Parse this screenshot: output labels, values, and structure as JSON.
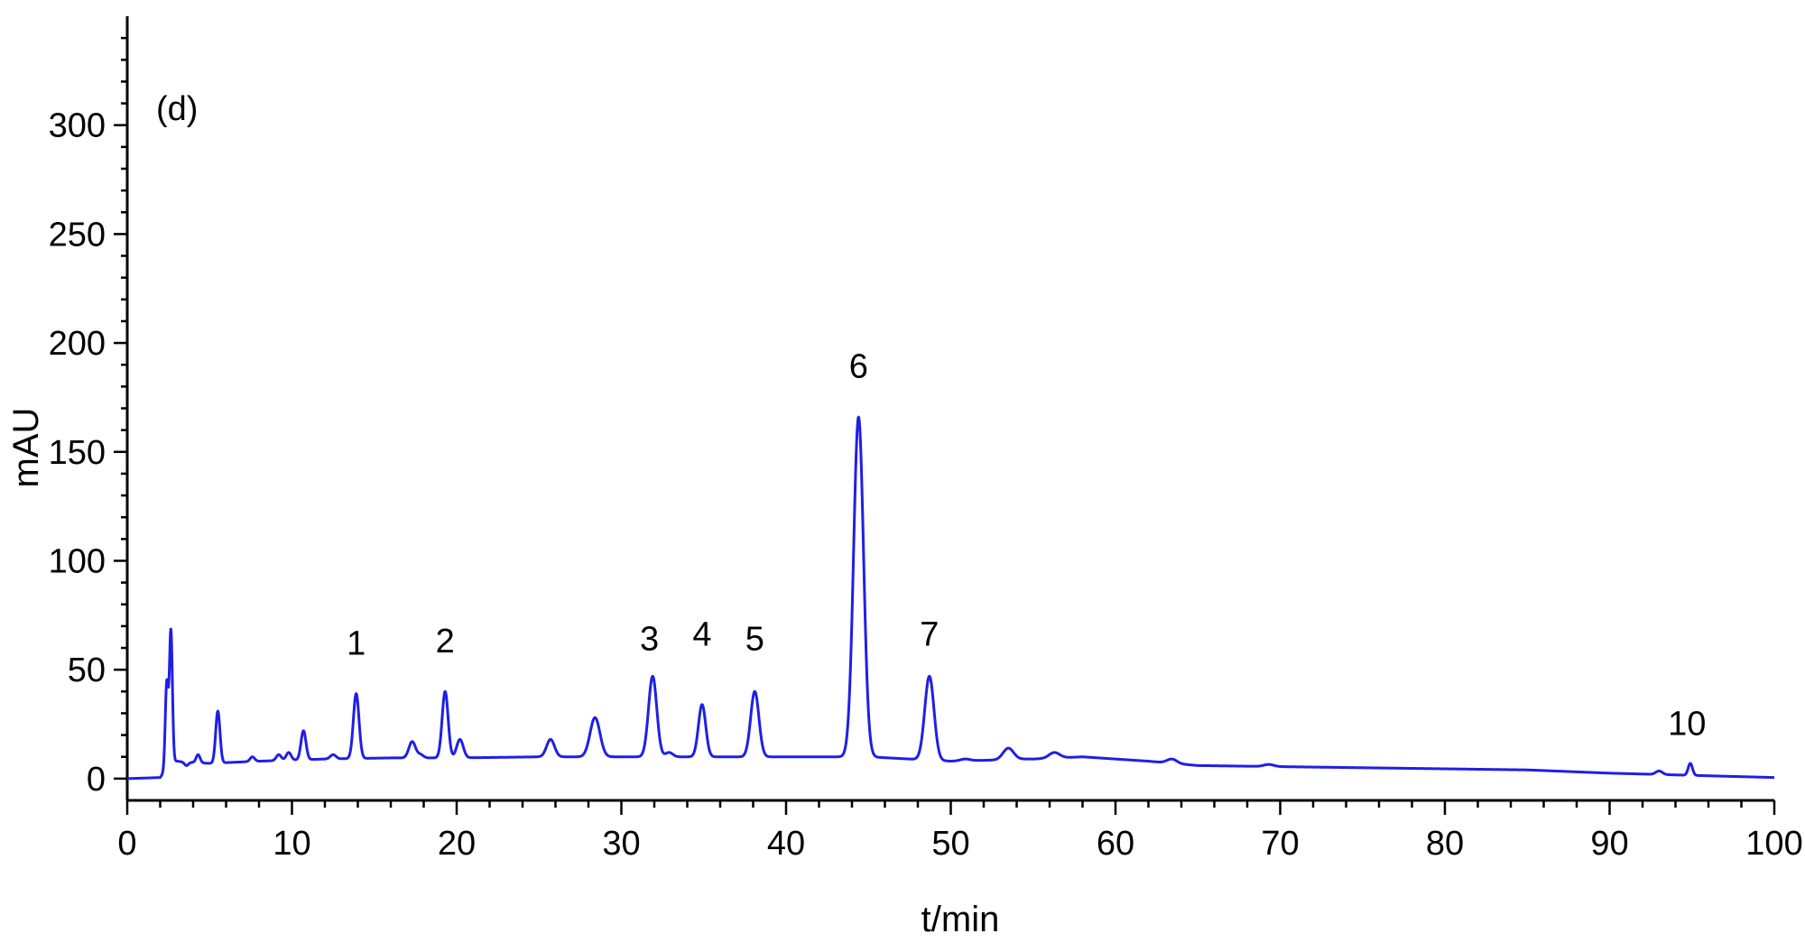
{
  "chart_data": {
    "type": "line",
    "panel_label": "(d)",
    "title": "",
    "xlabel": "t/min",
    "ylabel": "mAU",
    "xlim": [
      0,
      100
    ],
    "ylim": [
      -10,
      350
    ],
    "x_ticks": [
      0,
      10,
      20,
      30,
      40,
      50,
      60,
      70,
      80,
      90,
      100
    ],
    "y_ticks": [
      0,
      50,
      100,
      150,
      200,
      250,
      300
    ],
    "x_minor_step": 2,
    "y_minor_step": 10,
    "grid": false,
    "line_color": "#1f1fe6",
    "baseline": [
      [
        0,
        0
      ],
      [
        2.0,
        0.5
      ],
      [
        2.7,
        8
      ],
      [
        5,
        7
      ],
      [
        8,
        8
      ],
      [
        12,
        9
      ],
      [
        16,
        9.5
      ],
      [
        20,
        9.5
      ],
      [
        25,
        10
      ],
      [
        30,
        10
      ],
      [
        40,
        10
      ],
      [
        45,
        10
      ],
      [
        50,
        8
      ],
      [
        55,
        9
      ],
      [
        58,
        10
      ],
      [
        62,
        8
      ],
      [
        65,
        6
      ],
      [
        70,
        5.5
      ],
      [
        80,
        4.5
      ],
      [
        85,
        4
      ],
      [
        90,
        2.5
      ],
      [
        95,
        1.5
      ],
      [
        100,
        0.5
      ]
    ],
    "peaks": [
      {
        "x": 2.4,
        "height": 44,
        "width": 0.09
      },
      {
        "x": 2.65,
        "height": 68,
        "width": 0.09
      },
      {
        "x": 3.0,
        "height": 8,
        "width": 0.12
      },
      {
        "x": 3.6,
        "height": 6,
        "width": 0.12
      },
      {
        "x": 4.3,
        "height": 11,
        "width": 0.12
      },
      {
        "x": 5.5,
        "height": 31,
        "width": 0.13
      },
      {
        "x": 7.6,
        "height": 10,
        "width": 0.14
      },
      {
        "x": 9.2,
        "height": 11,
        "width": 0.15
      },
      {
        "x": 9.8,
        "height": 12,
        "width": 0.15
      },
      {
        "x": 10.7,
        "height": 22,
        "width": 0.15
      },
      {
        "x": 12.5,
        "height": 11,
        "width": 0.17
      },
      {
        "x": 13.9,
        "height": 39,
        "width": 0.17
      },
      {
        "x": 17.3,
        "height": 17,
        "width": 0.2
      },
      {
        "x": 17.8,
        "height": 11,
        "width": 0.18
      },
      {
        "x": 19.3,
        "height": 40,
        "width": 0.18
      },
      {
        "x": 20.2,
        "height": 18,
        "width": 0.2
      },
      {
        "x": 25.7,
        "height": 18,
        "width": 0.24
      },
      {
        "x": 28.4,
        "height": 28,
        "width": 0.3
      },
      {
        "x": 31.9,
        "height": 47,
        "width": 0.25
      },
      {
        "x": 32.9,
        "height": 12,
        "width": 0.22
      },
      {
        "x": 34.9,
        "height": 34,
        "width": 0.22
      },
      {
        "x": 38.1,
        "height": 40,
        "width": 0.25
      },
      {
        "x": 44.4,
        "height": 166,
        "width": 0.3
      },
      {
        "x": 48.7,
        "height": 47,
        "width": 0.28
      },
      {
        "x": 50.9,
        "height": 9,
        "width": 0.3
      },
      {
        "x": 53.5,
        "height": 14,
        "width": 0.32
      },
      {
        "x": 54.6,
        "height": 9,
        "width": 0.3
      },
      {
        "x": 56.3,
        "height": 12,
        "width": 0.32
      },
      {
        "x": 63.4,
        "height": 9,
        "width": 0.3
      },
      {
        "x": 69.3,
        "height": 6.5,
        "width": 0.3
      },
      {
        "x": 93.0,
        "height": 3.5,
        "width": 0.2
      },
      {
        "x": 94.9,
        "height": 7,
        "width": 0.13
      }
    ],
    "peak_labels": [
      {
        "text": "1",
        "x": 13.9,
        "y": 57
      },
      {
        "text": "2",
        "x": 19.3,
        "y": 58
      },
      {
        "text": "3",
        "x": 31.7,
        "y": 59
      },
      {
        "text": "4",
        "x": 34.9,
        "y": 61
      },
      {
        "text": "5",
        "x": 38.1,
        "y": 59
      },
      {
        "text": "6",
        "x": 44.4,
        "y": 184
      },
      {
        "text": "7",
        "x": 48.7,
        "y": 61
      },
      {
        "text": "10",
        "x": 94.7,
        "y": 20
      }
    ]
  }
}
